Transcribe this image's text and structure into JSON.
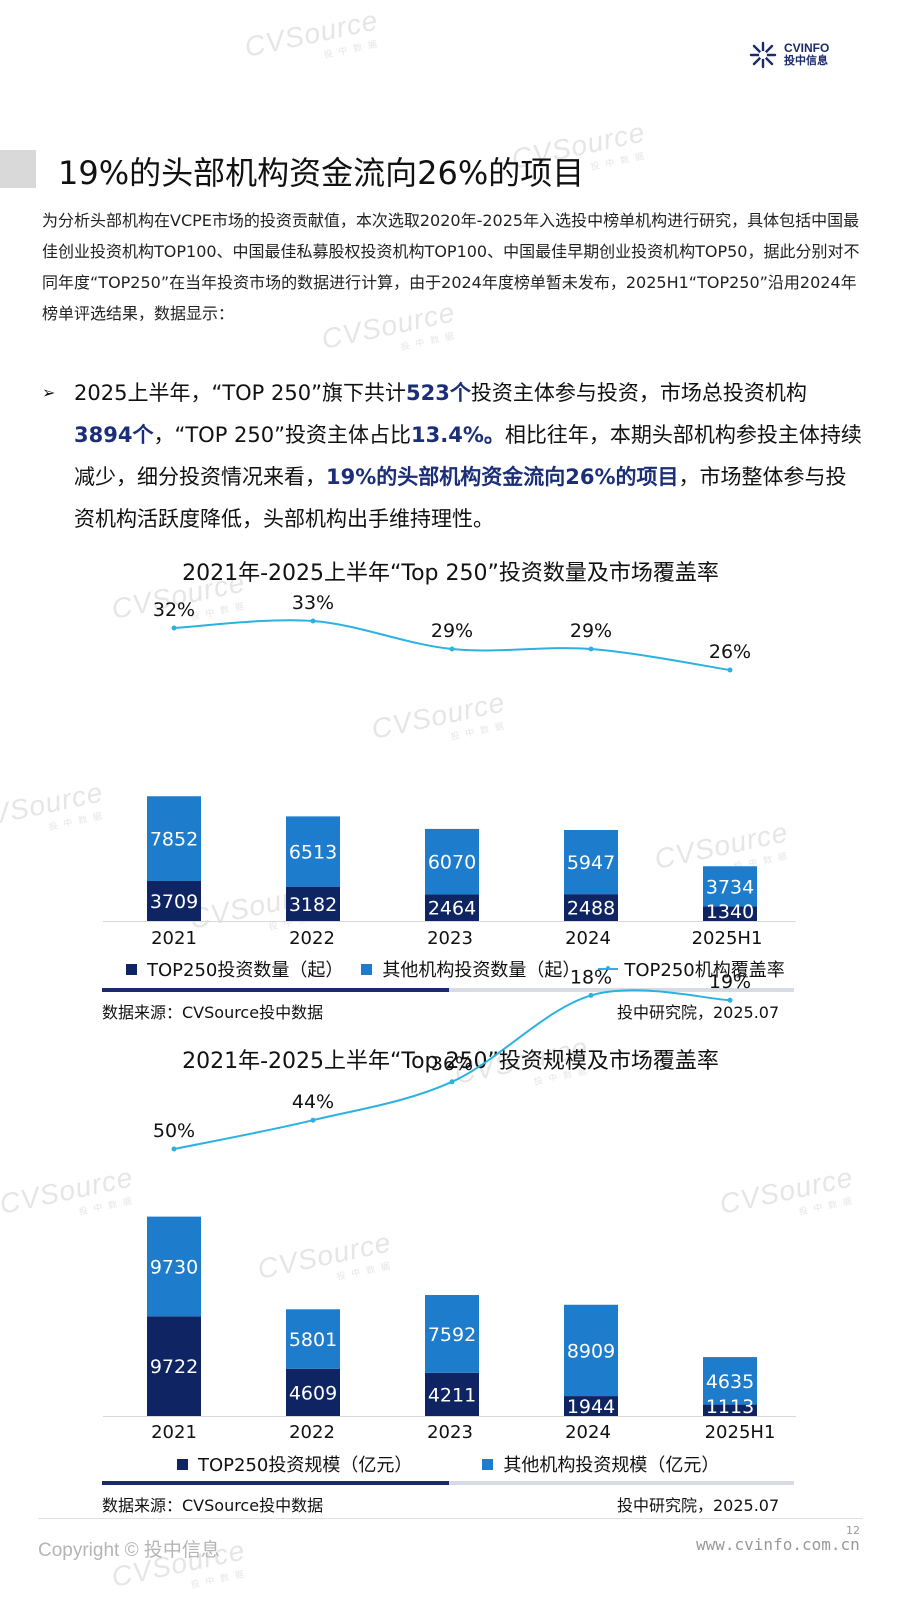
{
  "header": {
    "logo_text": "CVINFO",
    "logo_sub": "投中信息"
  },
  "title": "19%的头部机构资金流向26%的项目",
  "intro": "为分析头部机构在VCPE市场的投资贡献值，本次选取2020年-2025年入选投中榜单机构进行研究，具体包括中国最佳创业投资机构TOP100、中国最佳私募股权投资机构TOP100、中国最佳早期创业投资机构TOP50，据此分别对不同年度“TOP250”在当年投资市场的数据进行计算，由于2024年度榜单暂未发布，2025H1“TOP250”沿用2024年榜单评选结果，数据显示：",
  "bullet": {
    "p1": "2025上半年，“TOP 250”旗下共计",
    "v1": "523个",
    "p2": "投资主体参与投资，市场总投资机构",
    "v2": "3894个",
    "p3": "，“TOP 250”投资主体占比",
    "v3": "13.4%。",
    "p4": "相比往年，本期头部机构参投主体持续减少，细分投资情况来看，",
    "v4": "19%的头部机构资金流向26%的项目",
    "p5": "，市场整体参与投资机构活跃度降低，头部机构出手维持理性。"
  },
  "chart_data": [
    {
      "type": "bar",
      "title": "2021年-2025上半年“Top 250”投资数量及市场覆盖率",
      "categories": [
        "2021",
        "2022",
        "2023",
        "2024",
        "2025H1"
      ],
      "stacked": true,
      "series": [
        {
          "name": "TOP250投资数量（起）",
          "values": [
            3709,
            3182,
            2464,
            2488,
            1340
          ],
          "color": "#0f2462"
        },
        {
          "name": "其他机构投资数量（起）",
          "values": [
            7852,
            6513,
            6070,
            5947,
            3734
          ],
          "color": "#1d7ccb"
        }
      ],
      "line": {
        "name": "TOP250机构覆盖率",
        "values": [
          32,
          33,
          29,
          29,
          26
        ],
        "labels": [
          "32%",
          "33%",
          "29%",
          "29%",
          "26%"
        ],
        "color": "#2bb2e0"
      },
      "source_left": "数据来源：CVSource投中数据",
      "source_right": "投中研究院，2025.07"
    },
    {
      "type": "bar",
      "title": "2021年-2025上半年“Top 250”投资规模及市场覆盖率",
      "categories": [
        "2021",
        "2022",
        "2023",
        "2024",
        "2025H1"
      ],
      "stacked": true,
      "series": [
        {
          "name": "TOP250投资规模（亿元）",
          "values": [
            9722,
            4609,
            4211,
            1944,
            1113
          ],
          "color": "#0f2462"
        },
        {
          "name": "其他机构投资规模（亿元）",
          "values": [
            9730,
            5801,
            7592,
            8909,
            4635
          ],
          "color": "#1d7ccb"
        }
      ],
      "line": {
        "values": [
          50,
          44,
          36,
          18,
          19
        ],
        "labels": [
          "50%",
          "44%",
          "36%",
          "18%",
          "19%"
        ],
        "color": "#2bb2e0"
      },
      "source_left": "数据来源：CVSource投中数据",
      "source_right": "投中研究院，2025.07"
    }
  ],
  "footer": {
    "copyright": "Copyright © 投中信息",
    "page": "12",
    "url": "www.cvinfo.com.cn"
  },
  "watermark": {
    "text": "CVSource",
    "sub": "投中数据"
  }
}
